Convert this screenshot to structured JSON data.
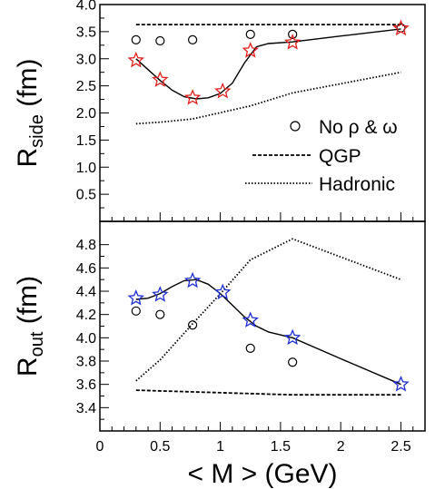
{
  "chart_data": [
    {
      "type": "line",
      "panel": "top",
      "ylabel_main": "R",
      "ylabel_sub": "side",
      "ylabel_unit": "(fm)",
      "xlim": [
        0,
        2.7
      ],
      "ylim": [
        0,
        4.0
      ],
      "yticks": [
        0.5,
        1.0,
        1.5,
        2.0,
        2.5,
        3.0,
        3.5,
        4.0
      ],
      "ytick_labels": [
        "0.5",
        "1.0",
        "1.5",
        "2.0",
        "2.5",
        "3.0",
        "3.5",
        "4.0"
      ],
      "series": [
        {
          "marker": "star",
          "color": "#e0201e",
          "x": [
            0.3,
            0.5,
            0.77,
            1.02,
            1.25,
            1.6,
            2.5
          ],
          "y": [
            2.97,
            2.61,
            2.28,
            2.4,
            3.15,
            3.3,
            3.56
          ]
        },
        {
          "name": "No ρ & ω",
          "marker": "circle",
          "color": "#000000",
          "x": [
            0.3,
            0.5,
            0.77,
            1.25,
            1.6,
            2.5
          ],
          "y": [
            3.35,
            3.33,
            3.35,
            3.45,
            3.45,
            3.57
          ]
        },
        {
          "name": "QGP",
          "style": "dashed",
          "color": "#000000",
          "x": [
            0.3,
            2.5
          ],
          "y": [
            3.63,
            3.63
          ]
        },
        {
          "name": "Hadronic",
          "style": "dotted",
          "color": "#000000",
          "x": [
            0.3,
            0.5,
            0.77,
            1.25,
            1.6,
            2.5
          ],
          "y": [
            1.8,
            1.83,
            1.89,
            2.13,
            2.37,
            2.75
          ]
        }
      ],
      "curve": {
        "x": [
          0.3,
          0.4,
          0.5,
          0.6,
          0.7,
          0.8,
          0.9,
          1.0,
          1.1,
          1.2,
          1.3,
          1.4,
          1.6,
          2.0,
          2.5
        ],
        "y": [
          3.0,
          2.8,
          2.6,
          2.42,
          2.3,
          2.26,
          2.28,
          2.36,
          2.55,
          2.92,
          3.22,
          3.28,
          3.31,
          3.42,
          3.55
        ]
      },
      "legend": {
        "position": "right",
        "items": [
          {
            "label": "No ρ & ω",
            "symbol": "circle"
          },
          {
            "label": "QGP",
            "symbol": "dashed"
          },
          {
            "label": "Hadronic",
            "symbol": "dotted"
          }
        ]
      }
    },
    {
      "type": "line",
      "panel": "bottom",
      "ylabel_main": "R",
      "ylabel_sub": "out",
      "ylabel_unit": "(fm)",
      "xlabel": "< M > (GeV)",
      "xlim": [
        0,
        2.7
      ],
      "ylim": [
        3.2,
        5.0
      ],
      "xticks": [
        0,
        0.5,
        1,
        1.5,
        2,
        2.5
      ],
      "xtick_labels": [
        "0",
        "0.5",
        "1",
        "1.5",
        "2",
        "2.5"
      ],
      "yticks": [
        3.4,
        3.6,
        3.8,
        4.0,
        4.2,
        4.4,
        4.6,
        4.8
      ],
      "ytick_labels": [
        "3.4",
        "3.6",
        "3.8",
        "4.0",
        "4.2",
        "4.4",
        "4.6",
        "4.8"
      ],
      "series": [
        {
          "marker": "star",
          "color": "#1f2fd0",
          "x": [
            0.3,
            0.5,
            0.77,
            1.02,
            1.25,
            1.6,
            2.5
          ],
          "y": [
            4.34,
            4.37,
            4.49,
            4.39,
            4.15,
            4.0,
            3.6
          ]
        },
        {
          "marker": "circle",
          "color": "#000000",
          "x": [
            0.3,
            0.5,
            0.77,
            1.25,
            1.6
          ],
          "y": [
            4.23,
            4.2,
            4.11,
            3.91,
            3.79
          ]
        },
        {
          "style": "dashed",
          "color": "#000000",
          "x": [
            0.3,
            1.6,
            2.5
          ],
          "y": [
            3.55,
            3.51,
            3.51
          ]
        },
        {
          "style": "dotted",
          "color": "#000000",
          "x": [
            0.3,
            0.5,
            0.77,
            1.02,
            1.25,
            1.6,
            2.5
          ],
          "y": [
            3.63,
            3.81,
            4.12,
            4.4,
            4.67,
            4.85,
            4.5
          ]
        }
      ],
      "curve": {
        "x": [
          0.3,
          0.4,
          0.5,
          0.6,
          0.7,
          0.8,
          0.9,
          1.0,
          1.1,
          1.2,
          1.3,
          1.4,
          1.6,
          2.0,
          2.5
        ],
        "y": [
          4.33,
          4.34,
          4.38,
          4.44,
          4.49,
          4.5,
          4.46,
          4.38,
          4.28,
          4.18,
          4.1,
          4.05,
          4.0,
          3.82,
          3.6
        ]
      }
    }
  ]
}
